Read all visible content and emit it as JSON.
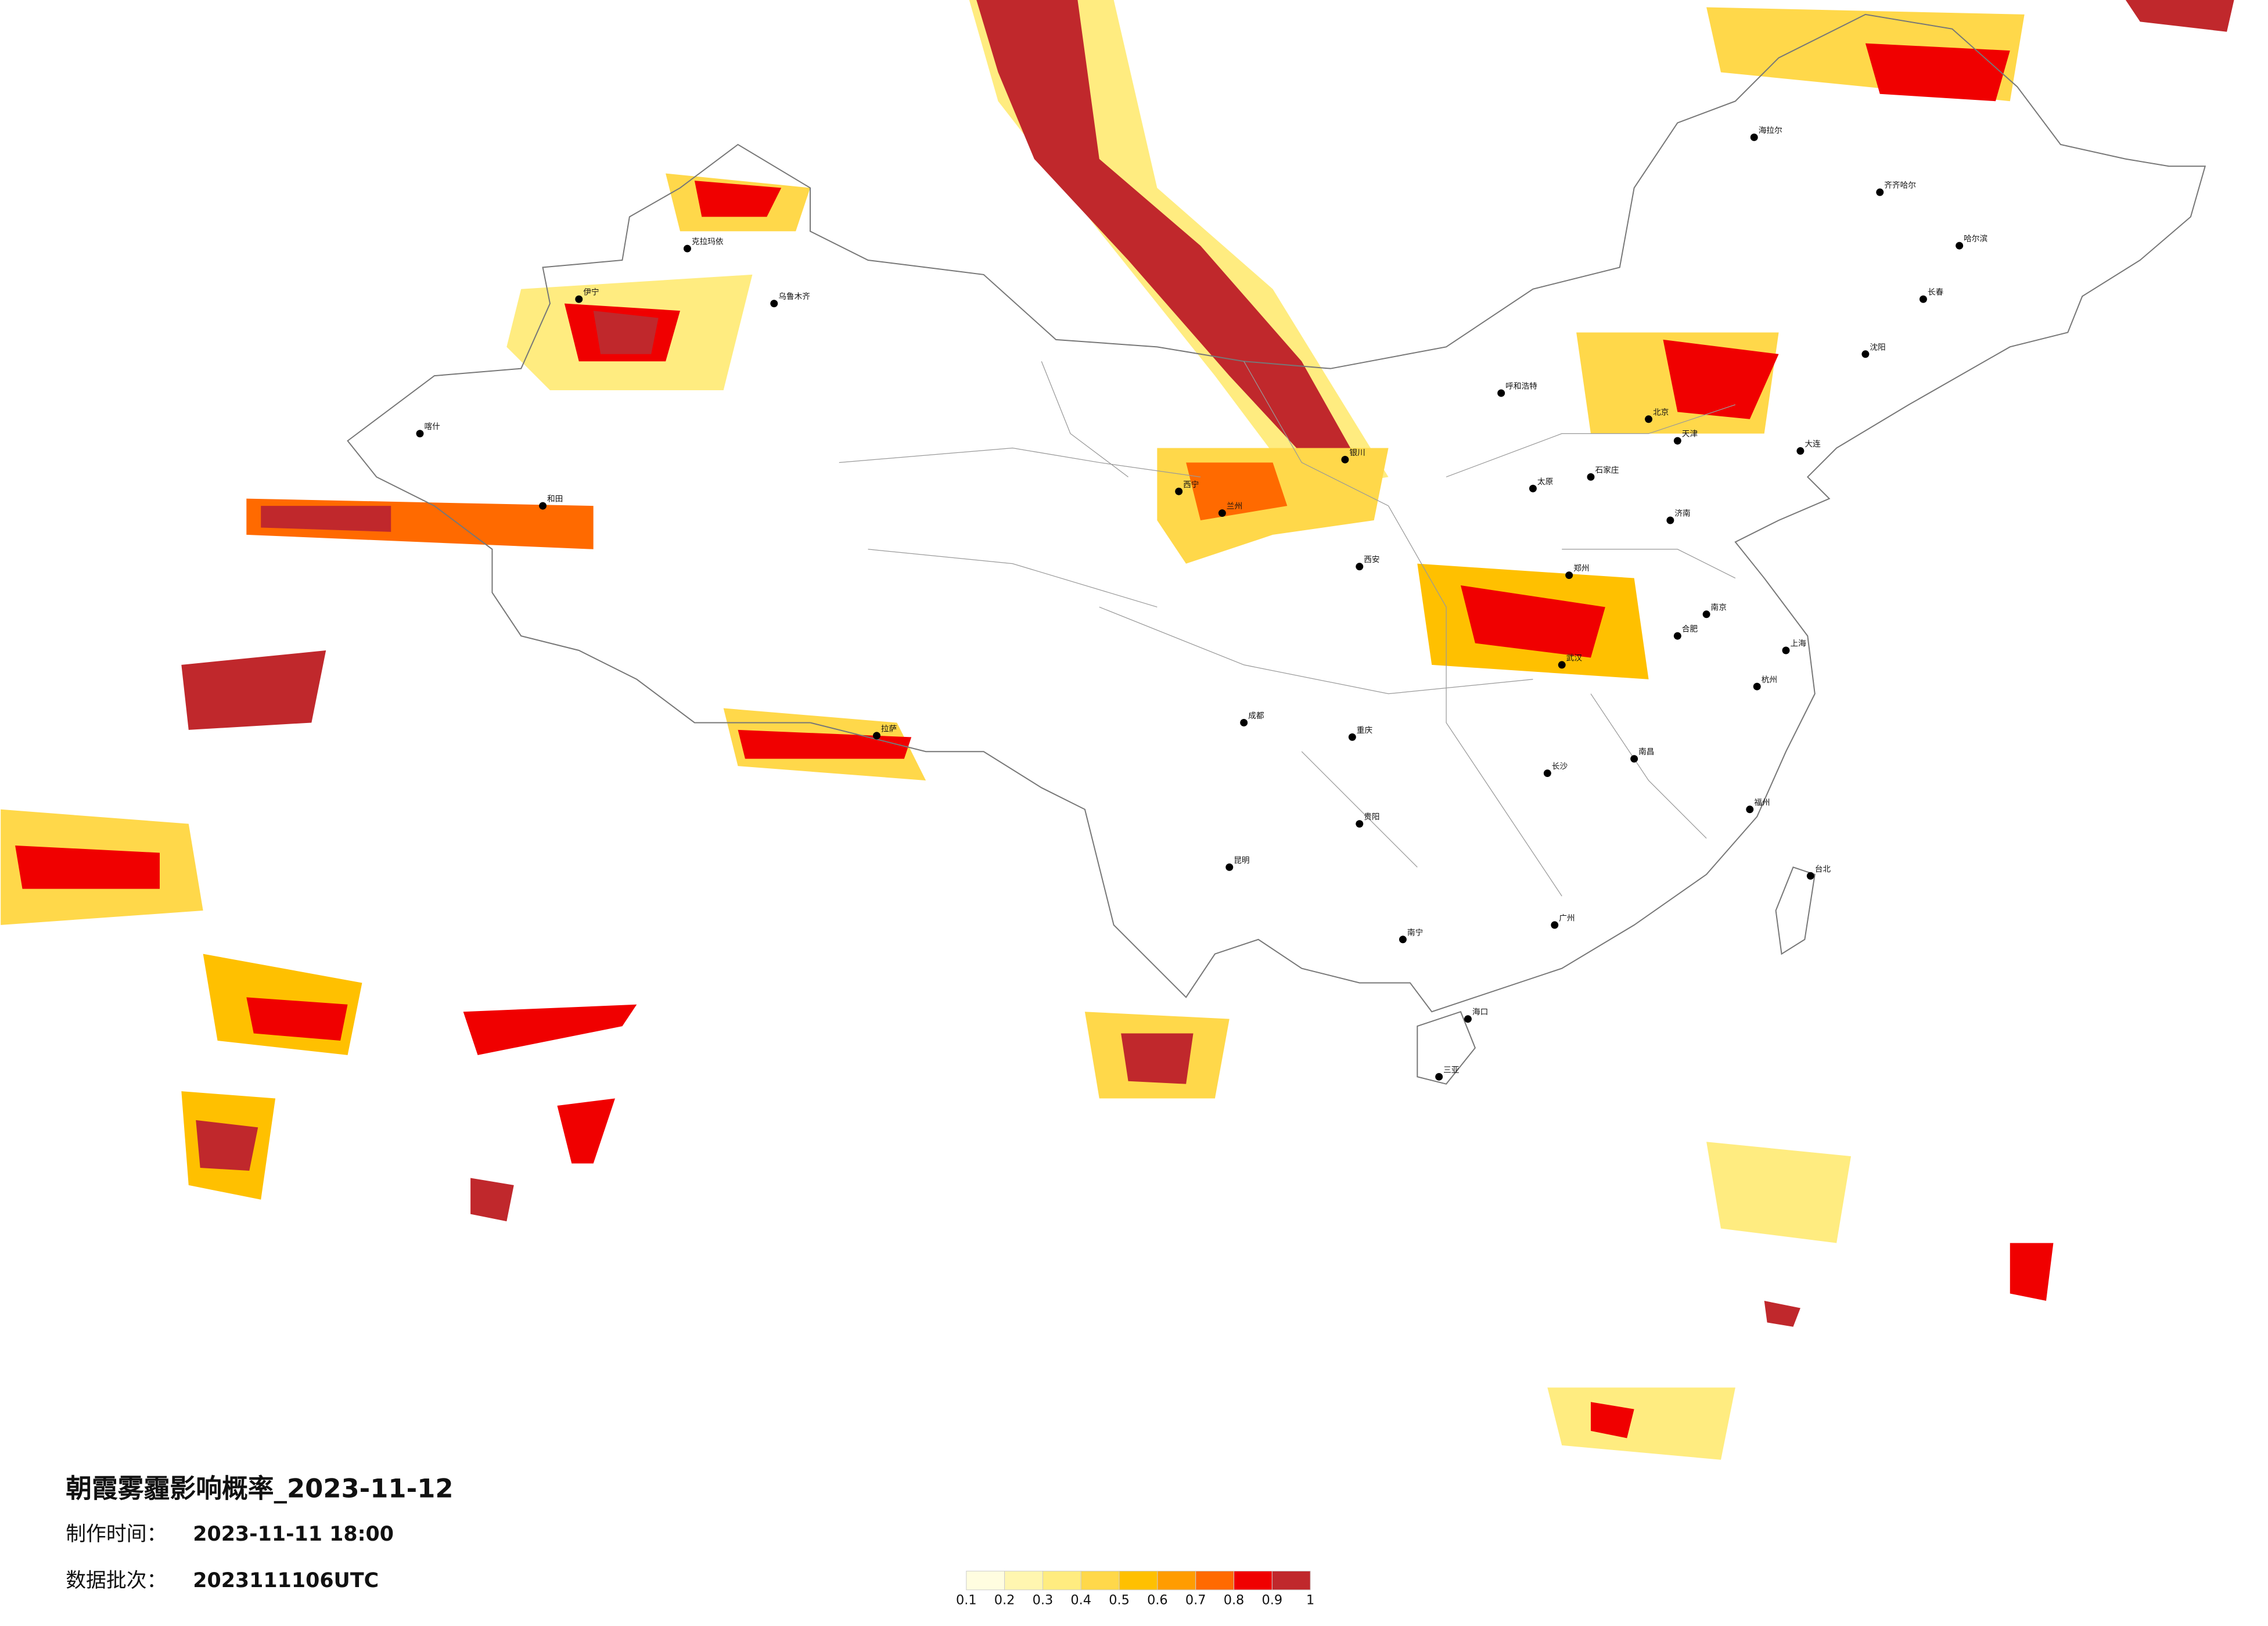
{
  "header": {
    "title": "朝霞雾霾影响概率_2023-11-12",
    "made_label": "制作时间：",
    "made_time": "2023-11-11 18:00",
    "batch_label": "数据批次：",
    "batch": "2023111106UTC"
  },
  "legend": {
    "colors": [
      "#fffde0",
      "#fff6b0",
      "#ffec80",
      "#ffd84a",
      "#ffc000",
      "#ff9c00",
      "#ff6a00",
      "#f00000",
      "#c0282c"
    ],
    "ticks": [
      0.1,
      0.2,
      0.3,
      0.4,
      0.5,
      0.6,
      0.7,
      0.8,
      0.9,
      1
    ]
  },
  "cities": [
    "北京",
    "天津",
    "石家庄",
    "太原",
    "呼和浩特",
    "哈尔滨",
    "长春",
    "沈阳",
    "大连",
    "济南",
    "郑州",
    "西安",
    "兰州",
    "银川",
    "西宁",
    "成都",
    "重庆",
    "武汉",
    "南京",
    "上海",
    "杭州",
    "合肥",
    "南昌",
    "长沙",
    "贵阳",
    "昆明",
    "南宁",
    "广州",
    "福州",
    "台北",
    "海口",
    "三亚",
    "拉萨",
    "乌鲁木齐",
    "海拉尔",
    "齐齐哈尔",
    "喀什",
    "和田",
    "克拉玛依",
    "伊宁"
  ]
}
